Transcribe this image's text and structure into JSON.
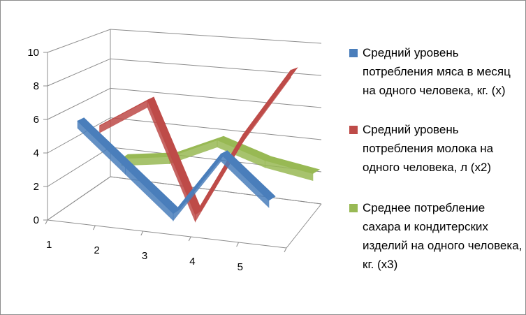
{
  "chart_data": {
    "type": "line",
    "style": "3d-line",
    "categories": [
      "1",
      "2",
      "3",
      "4",
      "5"
    ],
    "ylim": [
      0,
      10
    ],
    "yticks": [
      "0",
      "2",
      "4",
      "6",
      "8",
      "10"
    ],
    "grid": true,
    "legend_position": "right",
    "series": [
      {
        "name": "Средний уровень потребления мяса в месяц на одного человека, кг. (x)",
        "values": [
          6,
          3.5,
          1,
          5,
          2.5
        ],
        "color": "#4a7ebb"
      },
      {
        "name": "Средний уровень потребления молока на одного человека, л (x2)",
        "values": [
          5,
          7,
          0,
          5.5,
          10
        ],
        "color": "#be4b48"
      },
      {
        "name": "Среднее потребление сахара и кондитерских изделий на одного человека, кг. (x3)",
        "values": [
          2,
          2.5,
          4,
          3,
          2.5
        ],
        "color": "#98b954"
      }
    ]
  }
}
